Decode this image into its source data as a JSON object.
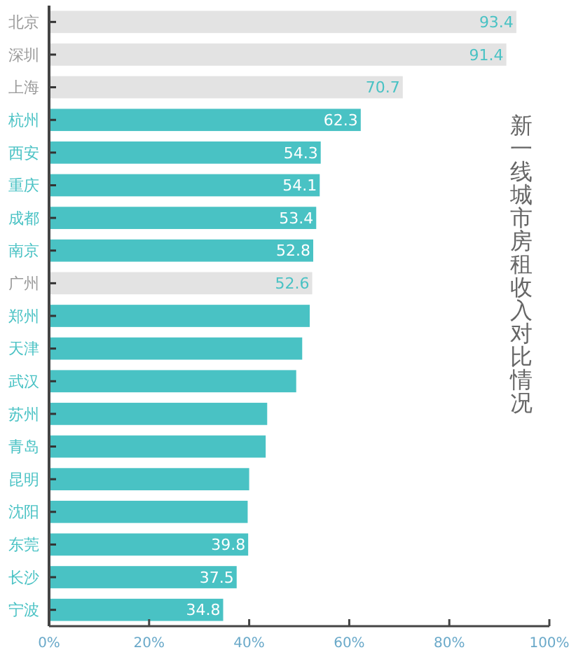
{
  "chart_data": {
    "type": "bar",
    "orientation": "horizontal",
    "title": "新一线城市房租收入对比情况",
    "categories": [
      "北京",
      "深圳",
      "上海",
      "杭州",
      "西安",
      "重庆",
      "成都",
      "南京",
      "广州",
      "郑州",
      "天津",
      "武汉",
      "苏州",
      "青岛",
      "昆明",
      "沈阳",
      "东莞",
      "长沙",
      "宁波"
    ],
    "values": [
      93.4,
      91.4,
      70.7,
      62.3,
      54.3,
      54.1,
      53.4,
      52.8,
      52.6,
      52.1,
      50.6,
      49.4,
      43.6,
      43.3,
      40.0,
      39.7,
      39.8,
      37.5,
      34.8
    ],
    "value_labels": [
      "93.4",
      "91.4",
      "70.7",
      "62.3",
      "54.3",
      "54.1",
      "53.4",
      "52.8",
      "52.6",
      null,
      null,
      null,
      null,
      null,
      null,
      null,
      "39.8",
      "37.5",
      "34.8"
    ],
    "colors": [
      "#e3e3e3",
      "#e3e3e3",
      "#e3e3e3",
      "#49c2c4",
      "#49c2c4",
      "#49c2c4",
      "#49c2c4",
      "#49c2c4",
      "#e3e3e3",
      "#49c2c4",
      "#49c2c4",
      "#49c2c4",
      "#49c2c4",
      "#49c2c4",
      "#49c2c4",
      "#49c2c4",
      "#49c2c4",
      "#49c2c4",
      "#49c2c4"
    ],
    "xlim": [
      0,
      100
    ],
    "xticks": [
      {
        "value": 0,
        "label": "0%"
      },
      {
        "value": 20,
        "label": "20%"
      },
      {
        "value": 40,
        "label": "40%"
      },
      {
        "value": 60,
        "label": "60%"
      },
      {
        "value": 80,
        "label": "80%"
      },
      {
        "value": 100,
        "label": "100%"
      }
    ],
    "grid": false
  }
}
